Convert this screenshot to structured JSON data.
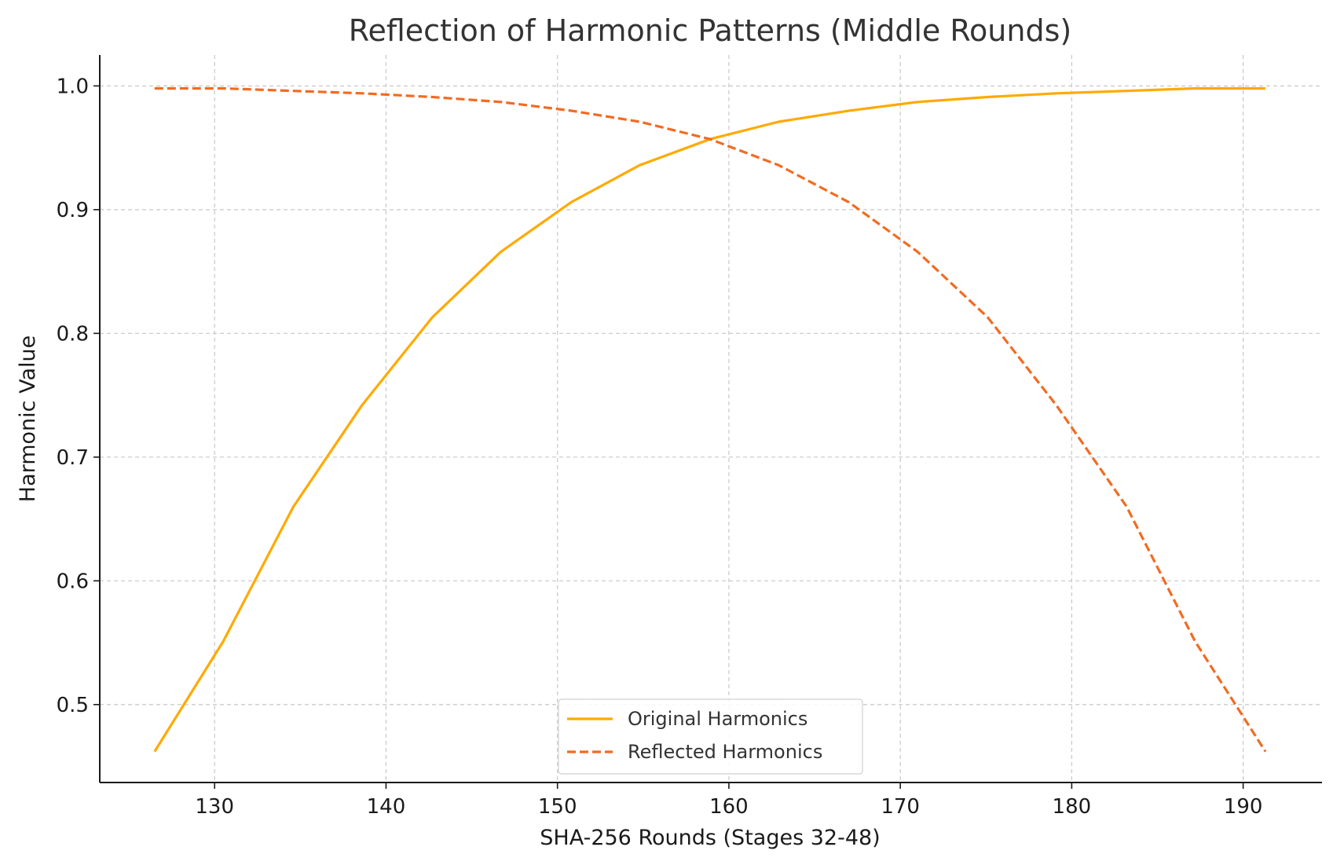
{
  "chart_data": {
    "type": "line",
    "title": "Reflection of Harmonic Patterns (Middle Rounds)",
    "xlabel": "SHA-256 Rounds (Stages 32-48)",
    "ylabel": "Harmonic Value",
    "xlim": [
      123.3,
      194.6
    ],
    "ylim": [
      0.437,
      1.025
    ],
    "xticks": [
      130,
      140,
      150,
      160,
      170,
      180,
      190
    ],
    "yticks": [
      0.5,
      0.6,
      0.7,
      0.8,
      0.9,
      1.0
    ],
    "xtick_labels": [
      "130",
      "140",
      "150",
      "160",
      "170",
      "180",
      "190"
    ],
    "ytick_labels": [
      "0.5",
      "0.6",
      "0.7",
      "0.8",
      "0.9",
      "1.0"
    ],
    "grid": true,
    "legend_position": "lower center",
    "series": [
      {
        "name": "Original Harmonics",
        "color": "#FFAA00",
        "line_style": "solid",
        "x": [
          126.5,
          130.5,
          134.6,
          138.6,
          142.7,
          146.7,
          150.8,
          154.8,
          158.9,
          162.9,
          167.0,
          171.0,
          175.1,
          179.1,
          183.2,
          187.2,
          191.3
        ],
        "y": [
          0.462,
          0.551,
          0.66,
          0.742,
          0.813,
          0.866,
          0.906,
          0.936,
          0.957,
          0.971,
          0.98,
          0.987,
          0.991,
          0.994,
          0.996,
          0.998,
          0.998
        ]
      },
      {
        "name": "Reflected Harmonics",
        "color": "#F26B21",
        "line_style": "dashed",
        "x": [
          126.5,
          130.5,
          134.6,
          138.6,
          142.7,
          146.7,
          150.8,
          154.8,
          158.9,
          162.9,
          167.0,
          171.0,
          175.1,
          179.1,
          183.2,
          187.2,
          191.3
        ],
        "y": [
          0.998,
          0.998,
          0.996,
          0.994,
          0.991,
          0.987,
          0.98,
          0.971,
          0.957,
          0.936,
          0.906,
          0.866,
          0.813,
          0.742,
          0.66,
          0.551,
          0.462
        ]
      }
    ]
  }
}
